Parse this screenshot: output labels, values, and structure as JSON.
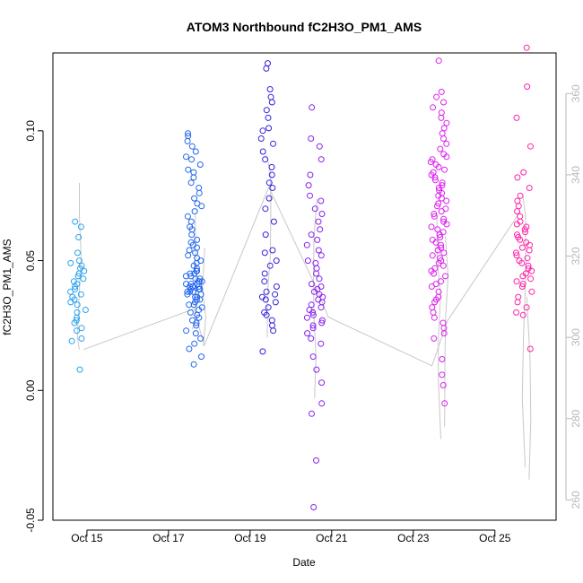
{
  "chart_data": {
    "type": "scatter",
    "title": "ATOM3 Northbound fC2H3O_PM1_AMS",
    "xlabel": "Date",
    "ylabel": "fC2H3O_PM1_AMS",
    "xlim": [
      "2017-10-14T04:00",
      "2017-10-26T12:00"
    ],
    "ylim": [
      -0.05,
      0.13
    ],
    "x_ticks": [
      "Oct 15",
      "Oct 17",
      "Oct 19",
      "Oct 21",
      "Oct 23",
      "Oct 25"
    ],
    "x_tick_values": [
      "2017-10-15",
      "2017-10-17",
      "2017-10-19",
      "2017-10-21",
      "2017-10-23",
      "2017-10-25"
    ],
    "y_ticks": [
      -0.05,
      0.0,
      0.05,
      0.1
    ],
    "y_tick_labels": [
      "-0.05",
      "0.00",
      "0.05",
      "0.10"
    ],
    "y2_lim": [
      255,
      370
    ],
    "y2_ticks": [
      260,
      280,
      300,
      320,
      340,
      360
    ],
    "y2_tick_labels": [
      "260",
      "280",
      "300",
      "320",
      "340",
      "360"
    ],
    "grid": false,
    "legend": "none",
    "colors": {
      "series": [
        "#29a3f0",
        "#2266ee",
        "#3322dd",
        "#8822ee",
        "#dd22ee",
        "#ff22aa"
      ],
      "secondary_line": "#c8c8c8",
      "axis": "#000000",
      "right_axis": "#b8b8b8"
    },
    "series": [
      {
        "time": "2017-10-14T19:00",
        "ys": [
          0.008,
          0.019,
          0.02,
          0.023,
          0.024,
          0.026,
          0.027,
          0.028,
          0.03,
          0.031,
          0.033,
          0.034,
          0.035,
          0.036,
          0.037,
          0.038,
          0.039,
          0.04,
          0.041,
          0.042,
          0.043,
          0.044,
          0.045,
          0.046,
          0.047,
          0.048,
          0.049,
          0.05,
          0.053,
          0.059,
          0.063,
          0.065
        ]
      },
      {
        "time": "2017-10-17T15:00",
        "ys": [
          0.01,
          0.013,
          0.016,
          0.018,
          0.02,
          0.022,
          0.023,
          0.025,
          0.026,
          0.027,
          0.028,
          0.029,
          0.03,
          0.031,
          0.032,
          0.033,
          0.033,
          0.034,
          0.035,
          0.035,
          0.036,
          0.036,
          0.037,
          0.037,
          0.038,
          0.038,
          0.038,
          0.039,
          0.039,
          0.039,
          0.04,
          0.04,
          0.04,
          0.04,
          0.041,
          0.041,
          0.041,
          0.042,
          0.042,
          0.042,
          0.043,
          0.043,
          0.044,
          0.044,
          0.045,
          0.045,
          0.046,
          0.046,
          0.047,
          0.048,
          0.049,
          0.05,
          0.051,
          0.052,
          0.053,
          0.054,
          0.055,
          0.056,
          0.057,
          0.058,
          0.06,
          0.062,
          0.063,
          0.065,
          0.067,
          0.069,
          0.071,
          0.072,
          0.074,
          0.076,
          0.078,
          0.08,
          0.082,
          0.084,
          0.085,
          0.087,
          0.089,
          0.09,
          0.092,
          0.094,
          0.096,
          0.098,
          0.099
        ]
      },
      {
        "time": "2017-10-19T11:00",
        "ys": [
          0.015,
          0.023,
          0.025,
          0.027,
          0.029,
          0.03,
          0.032,
          0.034,
          0.035,
          0.036,
          0.037,
          0.038,
          0.04,
          0.042,
          0.045,
          0.048,
          0.05,
          0.053,
          0.054,
          0.06,
          0.065,
          0.07,
          0.074,
          0.078,
          0.08,
          0.083,
          0.086,
          0.089,
          0.092,
          0.095,
          0.097,
          0.1,
          0.101,
          0.105,
          0.108,
          0.111,
          0.113,
          0.116,
          0.124,
          0.126
        ]
      },
      {
        "time": "2017-10-20T14:00",
        "ys": [
          -0.045,
          -0.027,
          -0.009,
          -0.005,
          0.003,
          0.008,
          0.013,
          0.018,
          0.02,
          0.022,
          0.024,
          0.025,
          0.026,
          0.027,
          0.028,
          0.029,
          0.03,
          0.031,
          0.032,
          0.033,
          0.034,
          0.035,
          0.036,
          0.037,
          0.038,
          0.039,
          0.04,
          0.041,
          0.043,
          0.045,
          0.047,
          0.049,
          0.05,
          0.052,
          0.054,
          0.056,
          0.058,
          0.06,
          0.062,
          0.065,
          0.068,
          0.07,
          0.073,
          0.075,
          0.079,
          0.083,
          0.089,
          0.094,
          0.097,
          0.109
        ]
      },
      {
        "time": "2017-10-23T15:00",
        "ys": [
          -0.005,
          0.002,
          0.006,
          0.012,
          0.02,
          0.022,
          0.024,
          0.026,
          0.028,
          0.03,
          0.032,
          0.034,
          0.035,
          0.036,
          0.038,
          0.04,
          0.041,
          0.042,
          0.044,
          0.045,
          0.046,
          0.047,
          0.048,
          0.049,
          0.05,
          0.051,
          0.052,
          0.053,
          0.054,
          0.055,
          0.056,
          0.057,
          0.058,
          0.059,
          0.06,
          0.061,
          0.062,
          0.063,
          0.064,
          0.065,
          0.066,
          0.067,
          0.068,
          0.069,
          0.07,
          0.071,
          0.072,
          0.073,
          0.074,
          0.075,
          0.076,
          0.077,
          0.078,
          0.079,
          0.08,
          0.081,
          0.082,
          0.083,
          0.084,
          0.085,
          0.086,
          0.087,
          0.088,
          0.089,
          0.09,
          0.091,
          0.093,
          0.095,
          0.097,
          0.099,
          0.101,
          0.103,
          0.105,
          0.107,
          0.109,
          0.111,
          0.113,
          0.115,
          0.127
        ]
      },
      {
        "time": "2017-10-25T17:00",
        "ys": [
          0.016,
          0.029,
          0.03,
          0.032,
          0.034,
          0.036,
          0.038,
          0.04,
          0.041,
          0.042,
          0.043,
          0.044,
          0.045,
          0.046,
          0.047,
          0.048,
          0.049,
          0.05,
          0.051,
          0.052,
          0.053,
          0.054,
          0.055,
          0.056,
          0.057,
          0.058,
          0.059,
          0.06,
          0.061,
          0.062,
          0.063,
          0.064,
          0.065,
          0.067,
          0.069,
          0.071,
          0.073,
          0.075,
          0.078,
          0.082,
          0.084,
          0.094,
          0.105,
          0.117,
          0.132
        ]
      }
    ],
    "secondary_series": [
      {
        "time": "2017-10-14T19:00",
        "ys": [
          297,
          300,
          310,
          320,
          330,
          338
        ]
      },
      {
        "time": "2017-10-17T15:00",
        "ys": [
          302,
          305,
          310,
          320,
          330
        ]
      },
      {
        "time": "2017-10-17T21:00",
        "ys": [
          298,
          305,
          312,
          322
        ]
      },
      {
        "time": "2017-10-19T11:00",
        "ys": [
          300,
          310,
          320,
          330,
          340,
          345
        ]
      },
      {
        "time": "2017-10-20T14:00",
        "ys": [
          285,
          295,
          305,
          315,
          325,
          334
        ]
      },
      {
        "time": "2017-10-23T15:00",
        "ys": [
          275,
          290,
          300,
          310,
          320,
          330
        ]
      },
      {
        "time": "2017-10-23T19:00",
        "ys": [
          278,
          295,
          305,
          315,
          325
        ]
      },
      {
        "time": "2017-10-25T17:00",
        "ys": [
          268,
          285,
          300,
          315,
          330,
          335
        ]
      },
      {
        "time": "2017-10-25T20:00",
        "ys": [
          265,
          280,
          295,
          310
        ]
      }
    ],
    "secondary_trend": [
      {
        "time": "2017-10-14T22:00",
        "y": 297
      },
      {
        "time": "2017-10-17T15:00",
        "y": 307
      },
      {
        "time": "2017-10-17T21:00",
        "y": 298
      },
      {
        "time": "2017-10-19T11:00",
        "y": 337
      },
      {
        "time": "2017-10-20T14:00",
        "y": 313
      },
      {
        "time": "2017-10-20T22:00",
        "y": 305
      },
      {
        "time": "2017-10-23T11:00",
        "y": 293
      },
      {
        "time": "2017-10-23T20:00",
        "y": 304
      },
      {
        "time": "2017-10-25T15:00",
        "y": 331
      }
    ]
  }
}
